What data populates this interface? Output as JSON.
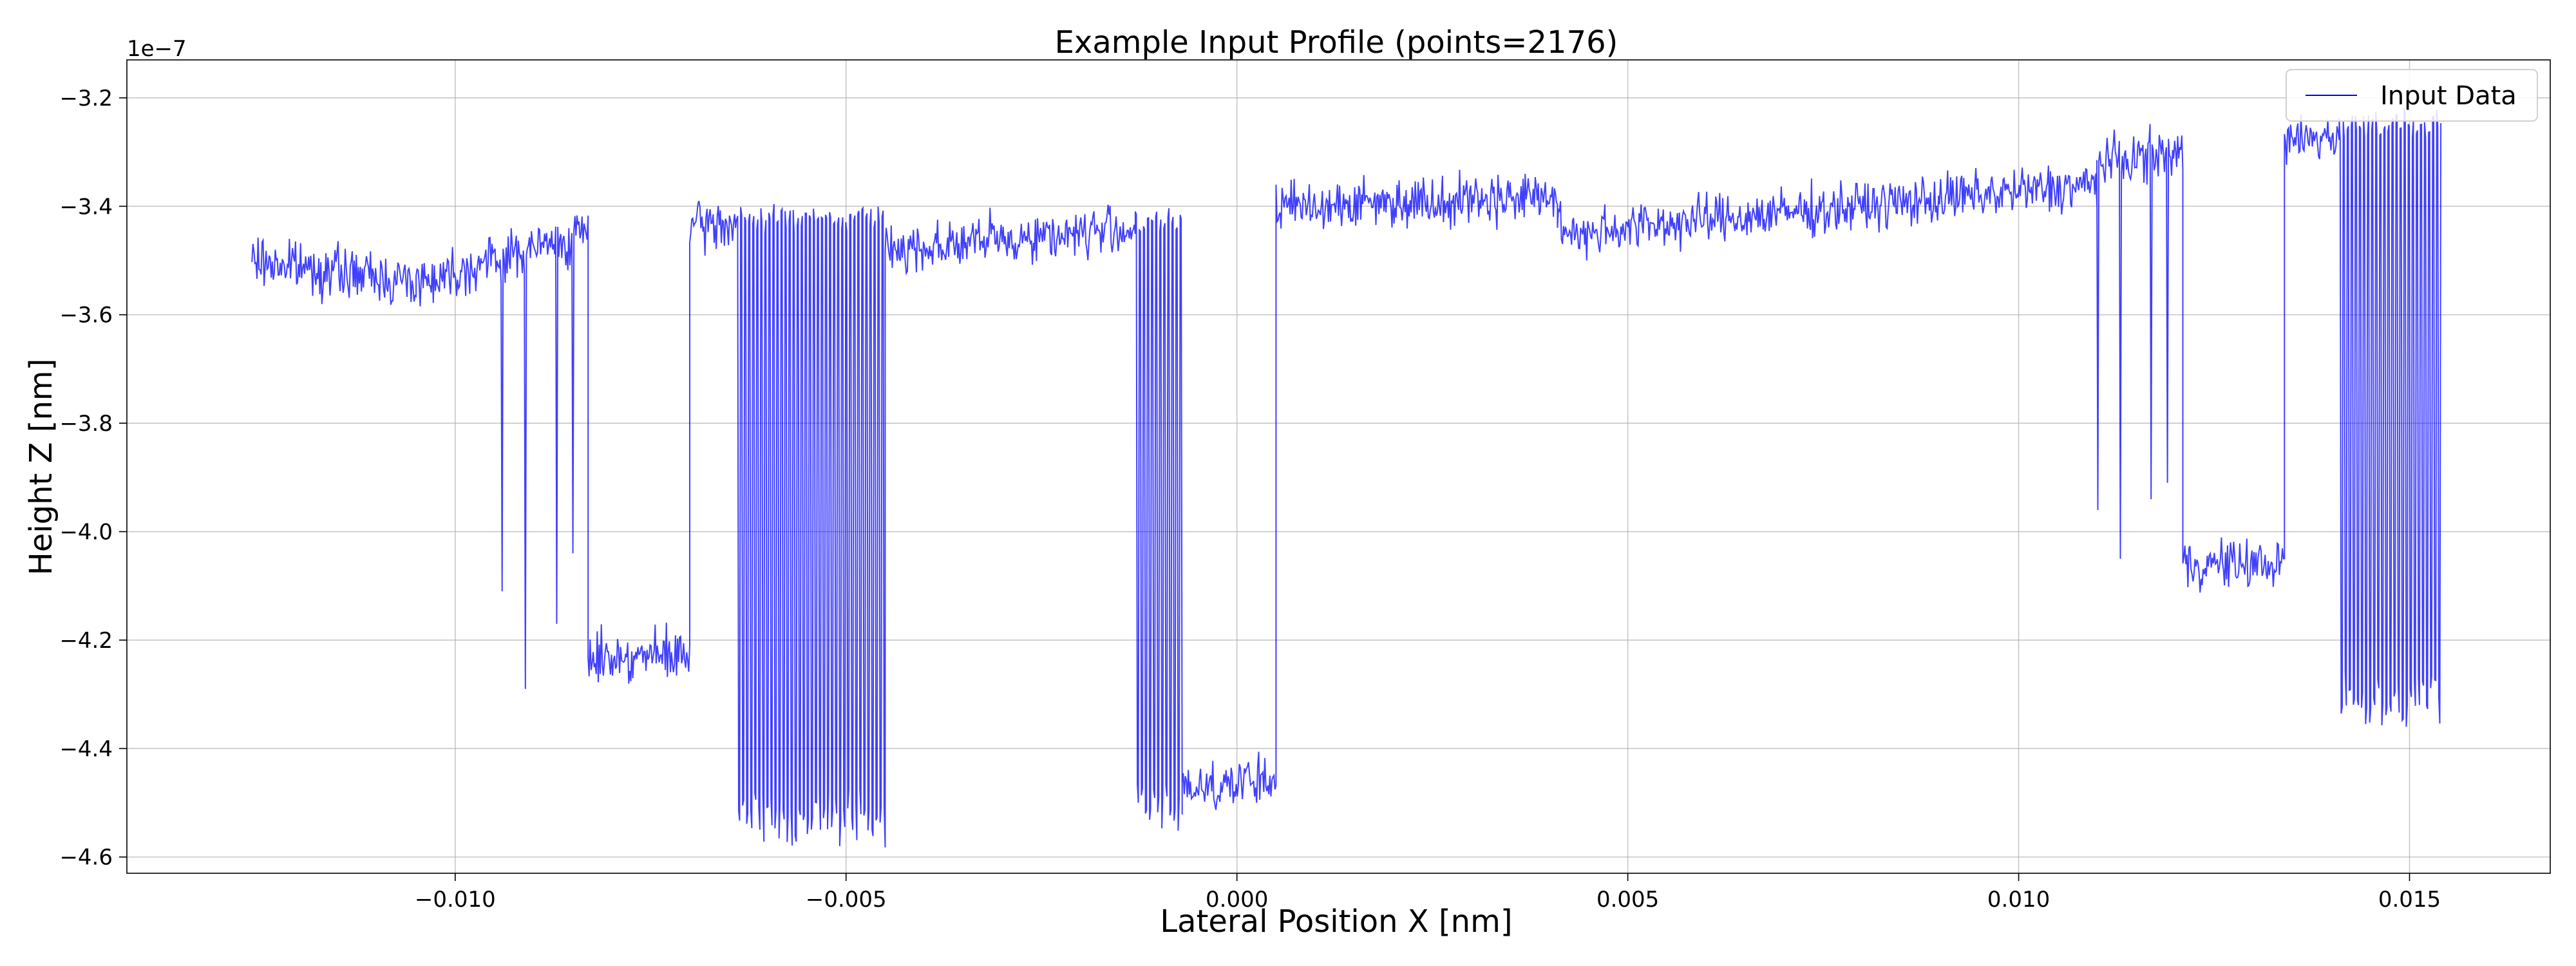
{
  "chart_data": {
    "type": "line",
    "title": "Example Input Profile (points=2176)",
    "xlabel": "Lateral Position X [nm]",
    "ylabel": "Height Z [nm]",
    "y_offset_label": "1e−7",
    "xlim": [
      -0.0142,
      0.0168
    ],
    "ylim": [
      -4.63,
      -3.13
    ],
    "x_ticks": [
      -0.01,
      -0.005,
      0.0,
      0.005,
      0.01,
      0.015
    ],
    "x_tick_labels": [
      "−0.010",
      "−0.005",
      "0.000",
      "0.005",
      "0.010",
      "0.015"
    ],
    "y_ticks": [
      -4.6,
      -4.4,
      -4.2,
      -4.0,
      -3.8,
      -3.6,
      -3.4,
      -3.2
    ],
    "y_tick_labels": [
      "−4.6",
      "−4.4",
      "−4.2",
      "−4.0",
      "−3.8",
      "−3.6",
      "−3.4",
      "−3.2"
    ],
    "grid": true,
    "legend_position": "top-right",
    "series": [
      {
        "name": "Input Data",
        "color": "#0000ff",
        "points": 2176,
        "x_range": [
          -0.0126,
          0.0154
        ],
        "segments": [
          {
            "x": [
              -0.0126,
              -0.0105
            ],
            "y": [
              -3.5,
              -3.54
            ],
            "kind": "noisy"
          },
          {
            "x": [
              -0.0105,
              -0.0083
            ],
            "y": [
              -3.54,
              -3.45
            ],
            "kind": "noisy",
            "spikes": [
              {
                "x": -0.0094,
                "y": -4.11
              },
              {
                "x": -0.0091,
                "y": -4.29
              },
              {
                "x": -0.0087,
                "y": -4.17
              },
              {
                "x": -0.0085,
                "y": -4.04
              }
            ]
          },
          {
            "x": [
              -0.0083,
              -0.007
            ],
            "y": [
              -4.23,
              -4.23
            ],
            "kind": "noisy"
          },
          {
            "x": [
              -0.007,
              -0.0064
            ],
            "y": [
              -3.44,
              -3.43
            ],
            "kind": "noisy"
          },
          {
            "x": [
              -0.0064,
              -0.0045
            ],
            "y_low": -4.53,
            "y_high": -3.42,
            "kind": "oscillation"
          },
          {
            "x": [
              -0.0045,
              -0.0013
            ],
            "y": [
              -3.48,
              -3.44
            ],
            "kind": "noisy"
          },
          {
            "x": [
              -0.0013,
              -0.0007
            ],
            "y_low": -4.51,
            "y_high": -3.43,
            "kind": "oscillation"
          },
          {
            "x": [
              -0.0007,
              0.0005
            ],
            "y": [
              -4.47,
              -4.46
            ],
            "kind": "noisy"
          },
          {
            "x": [
              0.0005,
              0.0041
            ],
            "y": [
              -3.4,
              -3.38
            ],
            "kind": "noisy"
          },
          {
            "x": [
              0.0041,
              0.011
            ],
            "y": [
              -3.45,
              -3.36
            ],
            "kind": "noisy"
          },
          {
            "x": [
              0.011,
              0.0121
            ],
            "y": [
              -3.32,
              -3.3
            ],
            "kind": "noisy",
            "spikes": [
              {
                "x": 0.0109,
                "y": -3.96
              },
              {
                "x": 0.0113,
                "y": -4.05
              },
              {
                "x": 0.0117,
                "y": -3.94
              },
              {
                "x": 0.0119,
                "y": -3.91
              }
            ]
          },
          {
            "x": [
              0.0121,
              0.0134
            ],
            "y": [
              -4.06,
              -4.06
            ],
            "kind": "noisy"
          },
          {
            "x": [
              0.0134,
              0.0141
            ],
            "y": [
              -3.28,
              -3.27
            ],
            "kind": "noisy"
          },
          {
            "x": [
              0.0141,
              0.0154
            ],
            "y_low": -4.31,
            "y_high": -3.25,
            "kind": "oscillation"
          }
        ]
      }
    ]
  }
}
